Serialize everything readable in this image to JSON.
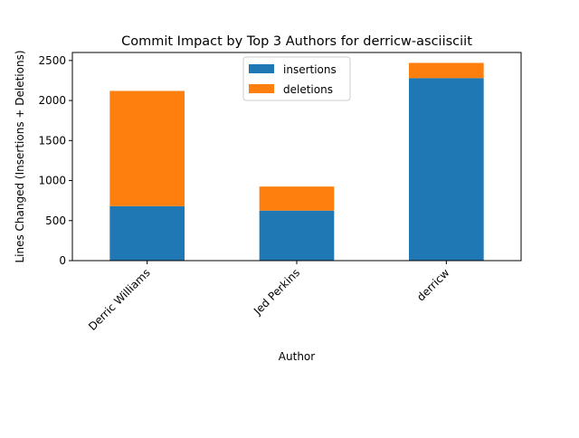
{
  "chart_data": {
    "type": "bar",
    "stacked": true,
    "title": "Commit Impact by Top 3 Authors for derricw-asciisciit",
    "xlabel": "Author",
    "ylabel": "Lines Changed (Insertions + Deletions)",
    "categories": [
      "Derric Williams",
      "Jed Perkins",
      "derricw"
    ],
    "series": [
      {
        "name": "insertions",
        "color": "#1f77b4",
        "values": [
          680,
          625,
          2280
        ]
      },
      {
        "name": "deletions",
        "color": "#ff7f0e",
        "values": [
          1440,
          300,
          190
        ]
      }
    ],
    "ylim": [
      0,
      2600
    ],
    "yticks": [
      "0",
      "500",
      "1000",
      "1500",
      "2000",
      "2500"
    ],
    "grid": false,
    "legend_position": "top-center"
  }
}
